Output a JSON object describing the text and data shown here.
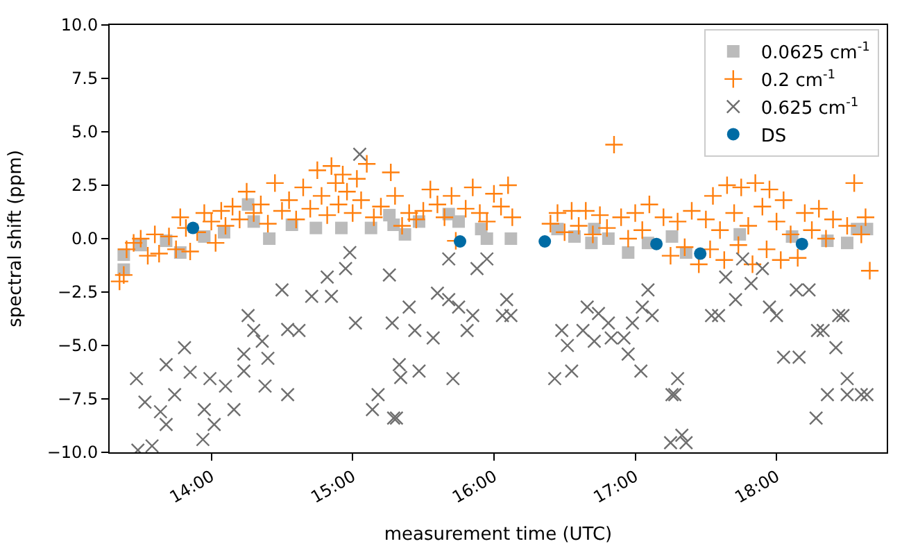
{
  "chart_data": {
    "type": "scatter",
    "xlabel": "measurement time (UTC)",
    "ylabel": "spectral shift (ppm)",
    "xlim": [
      13.28,
      18.78
    ],
    "ylim": [
      -10,
      10
    ],
    "xticks": [
      {
        "value": 14,
        "label": "14:00"
      },
      {
        "value": 15,
        "label": "15:00"
      },
      {
        "value": 16,
        "label": "16:00"
      },
      {
        "value": 17,
        "label": "17:00"
      },
      {
        "value": 18,
        "label": "18:00"
      }
    ],
    "yticks": [
      {
        "value": -10,
        "label": "−10.0"
      },
      {
        "value": -7.5,
        "label": "−7.5"
      },
      {
        "value": -5,
        "label": "−5.0"
      },
      {
        "value": -2.5,
        "label": "−2.5"
      },
      {
        "value": 0,
        "label": "0.0"
      },
      {
        "value": 2.5,
        "label": "2.5"
      },
      {
        "value": 5,
        "label": "5.0"
      },
      {
        "value": 7.5,
        "label": "7.5"
      },
      {
        "value": 10,
        "label": "10.0"
      }
    ],
    "legend": "top right",
    "series": [
      {
        "name": "0.0625 cm$^{-1}$",
        "color": "#bbbbbb",
        "marker": "square",
        "x": [
          13.38,
          13.38,
          13.5,
          13.68,
          13.78,
          13.95,
          14.09,
          14.26,
          14.3,
          14.41,
          14.57,
          14.74,
          14.92,
          15.13,
          15.26,
          15.37,
          15.29,
          15.47,
          15.68,
          15.75,
          15.91,
          15.95,
          16.12,
          16.45,
          16.57,
          16.71,
          16.69,
          16.81,
          16.95,
          17.09,
          17.26,
          17.36,
          17.74,
          18.11,
          18.36,
          18.5,
          18.57,
          18.64
        ],
        "values": [
          -0.75,
          -1.45,
          -0.3,
          -0.1,
          -0.65,
          0.1,
          0.3,
          1.6,
          0.8,
          0,
          0.65,
          0.5,
          0.5,
          0.5,
          1.1,
          0.2,
          0.65,
          0.8,
          1.15,
          0.8,
          0.45,
          0,
          0,
          0.45,
          0.1,
          0.45,
          -0.2,
          0,
          -0.65,
          -0.2,
          0.1,
          -0.65,
          0.2,
          0.1,
          -0.1,
          -0.2,
          0.45,
          0.45
        ]
      },
      {
        "name": "0.2 cm$^{-1}$",
        "color": "#ff7f0e",
        "marker": "plus",
        "x": [
          13.35,
          13.38,
          13.4,
          13.45,
          13.5,
          13.55,
          13.6,
          13.63,
          13.7,
          13.75,
          13.78,
          13.82,
          13.85,
          13.9,
          13.95,
          14.0,
          14.03,
          14.07,
          14.1,
          14.15,
          14.2,
          14.25,
          14.3,
          14.35,
          14.4,
          14.45,
          14.5,
          14.55,
          14.6,
          14.65,
          14.7,
          14.75,
          14.78,
          14.82,
          14.85,
          14.88,
          14.9,
          14.93,
          14.96,
          15.0,
          15.03,
          15.06,
          15.1,
          15.15,
          15.2,
          15.27,
          15.3,
          15.35,
          15.4,
          15.45,
          15.5,
          15.55,
          15.6,
          15.65,
          15.7,
          15.73,
          15.8,
          15.85,
          15.9,
          15.95,
          16.0,
          16.05,
          16.1,
          16.13,
          16.4,
          16.45,
          16.5,
          16.55,
          16.6,
          16.65,
          16.7,
          16.75,
          16.8,
          16.85,
          16.9,
          16.95,
          17.0,
          17.05,
          17.1,
          17.15,
          17.2,
          17.25,
          17.3,
          17.35,
          17.4,
          17.45,
          17.5,
          17.53,
          17.55,
          17.6,
          17.63,
          17.65,
          17.7,
          17.73,
          17.75,
          17.8,
          17.83,
          17.85,
          17.9,
          17.93,
          17.95,
          18.0,
          18.03,
          18.05,
          18.1,
          18.15,
          18.2,
          18.25,
          18.3,
          18.35,
          18.4,
          18.5,
          18.55,
          18.6,
          18.63,
          18.66
        ],
        "values": [
          -2.0,
          -1.7,
          -0.5,
          -0.2,
          0,
          -0.8,
          0.2,
          -0.7,
          0.1,
          -0.5,
          1.0,
          0.5,
          -0.6,
          0.3,
          1.2,
          0.8,
          -0.2,
          1.3,
          0.6,
          1.5,
          0.9,
          2.2,
          1.2,
          1.6,
          0.7,
          2.6,
          1.3,
          1.8,
          0.9,
          2.4,
          1.4,
          3.2,
          2.0,
          1.1,
          3.4,
          2.6,
          1.6,
          3.0,
          2.2,
          1.2,
          2.8,
          1.8,
          3.5,
          1.0,
          1.5,
          3.1,
          2.0,
          0.6,
          1.2,
          0.9,
          1.3,
          2.3,
          1.6,
          1.0,
          2.0,
          -0.1,
          1.4,
          2.4,
          1.2,
          0.8,
          2.1,
          1.5,
          2.5,
          1.0,
          0.7,
          1.2,
          0.3,
          1.3,
          0.6,
          1.3,
          0.2,
          1.1,
          0.5,
          4.4,
          1.0,
          0.0,
          1.2,
          0.4,
          1.6,
          null,
          1.0,
          -0.8,
          0.8,
          -0.4,
          1.3,
          -1.2,
          0.9,
          -0.5,
          2.0,
          0.4,
          -1.0,
          2.5,
          1.2,
          -0.3,
          2.4,
          0.6,
          -1.2,
          2.6,
          1.5,
          -0.5,
          2.3,
          0.8,
          -1.0,
          1.8,
          0.2,
          -0.9,
          1.2,
          0.4,
          1.4,
          0.0,
          0.9,
          0.6,
          2.6,
          0.2,
          1.0,
          -1.5
        ]
      },
      {
        "name": "0.625 cm$^{-1}$",
        "color": "#6e6e6e",
        "marker": "cross",
        "x": [
          15.05,
          15.26,
          14.98,
          14.95,
          14.82,
          14.5,
          14.71,
          14.85,
          14.62,
          14.54,
          15.02,
          14.26,
          14.3,
          14.36,
          14.23,
          14.4,
          13.81,
          13.68,
          13.85,
          13.47,
          13.99,
          14.23,
          14.1,
          13.53,
          13.74,
          13.64,
          13.68,
          13.95,
          14.16,
          14.02,
          14.38,
          14.54,
          13.94,
          13.58,
          15.14,
          15.18,
          15.31,
          15.28,
          15.4,
          15.33,
          15.34,
          15.68,
          15.88,
          15.95,
          15.6,
          15.68,
          15.75,
          15.44,
          15.57,
          15.81,
          15.85,
          16.09,
          16.06,
          16.12,
          15.47,
          15.71,
          15.29,
          16.43,
          16.55,
          16.48,
          16.52,
          16.63,
          16.66,
          16.74,
          16.81,
          16.71,
          16.83,
          16.92,
          16.95,
          16.98,
          17.05,
          17.09,
          17.12,
          17.04,
          17.3,
          17.28,
          17.25,
          17.26,
          17.33,
          17.36,
          17.54,
          17.59,
          17.64,
          17.71,
          17.76,
          17.82,
          17.9,
          17.95,
          18.0,
          18.05,
          18.16,
          18.14,
          18.23,
          18.28,
          18.29,
          18.33,
          18.42,
          18.44,
          18.47,
          18.36,
          18.5,
          18.5,
          18.6,
          18.64,
          13.48
        ],
        "values": [
          3.95,
          -1.7,
          -0.65,
          -1.4,
          -1.8,
          -2.4,
          -2.7,
          -2.7,
          -4.3,
          -4.25,
          -3.95,
          -3.6,
          -4.3,
          -4.8,
          -5.4,
          -5.6,
          -5.1,
          -5.9,
          -6.25,
          -6.55,
          -6.55,
          -6.2,
          -6.9,
          -7.65,
          -7.3,
          -8.1,
          -8.7,
          -8.0,
          -8.0,
          -8.7,
          -6.9,
          -7.3,
          -9.4,
          -9.7,
          -8.0,
          -7.3,
          -8.4,
          -3.95,
          -3.2,
          -5.9,
          -6.5,
          -0.95,
          -1.4,
          -0.95,
          -2.55,
          -2.85,
          -3.2,
          -4.3,
          -4.65,
          -4.3,
          -3.6,
          -2.85,
          -3.6,
          -3.6,
          -6.2,
          -6.55,
          -8.4,
          -6.55,
          -6.2,
          -4.3,
          -5.0,
          -4.3,
          -3.2,
          -3.5,
          -3.95,
          -4.8,
          -4.65,
          -4.65,
          -5.4,
          -3.95,
          -3.2,
          -2.4,
          -3.6,
          -6.2,
          -6.55,
          -7.3,
          -9.55,
          -7.3,
          -9.2,
          -9.55,
          -3.6,
          -3.6,
          -1.8,
          -2.85,
          -0.95,
          -2.1,
          -1.4,
          -3.2,
          -3.6,
          -5.55,
          -5.55,
          -2.4,
          -2.4,
          -8.4,
          -4.3,
          -4.3,
          -5.1,
          -3.6,
          -3.6,
          -7.3,
          -6.55,
          -7.3,
          -7.3,
          -7.3,
          -9.9
        ]
      },
      {
        "name": "DS",
        "color": "#006ba4",
        "marker": "circle",
        "x": [
          13.87,
          15.76,
          16.36,
          17.15,
          17.46,
          18.18
        ],
        "values": [
          0.5,
          -0.13,
          -0.13,
          -0.25,
          -0.7,
          -0.25
        ]
      }
    ]
  }
}
